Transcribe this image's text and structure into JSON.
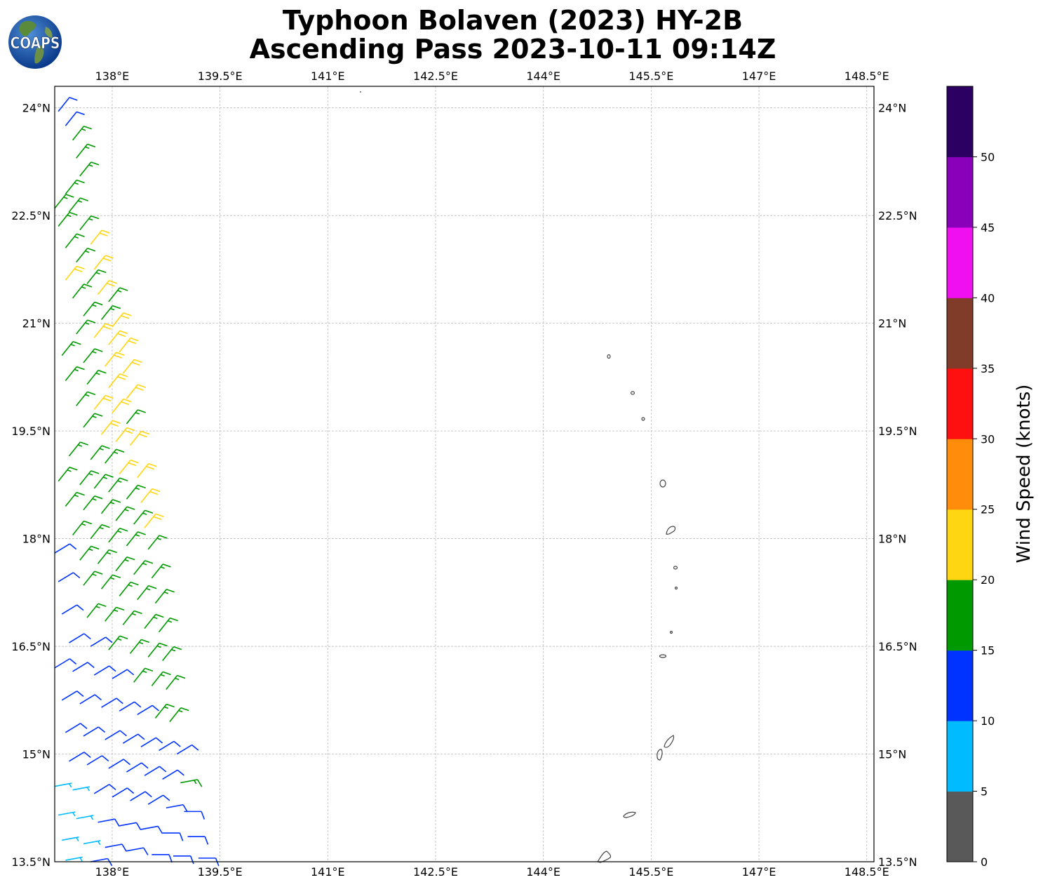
{
  "title": {
    "line1": "Typhoon Bolaven (2023) HY-2B",
    "line2": "Ascending Pass 2023-10-11 09:14Z"
  },
  "logo": {
    "text": "COAPS"
  },
  "map": {
    "lon_ticks": [
      "138°E",
      "139.5°E",
      "141°E",
      "142.5°E",
      "144°E",
      "145.5°E",
      "147°E",
      "148.5°E"
    ],
    "lat_ticks": [
      "24°N",
      "22.5°N",
      "21°N",
      "19.5°N",
      "18°N",
      "16.5°N",
      "15°N",
      "13.5°N"
    ],
    "lon_range": [
      137.2,
      148.6
    ],
    "lat_range": [
      13.5,
      24.3
    ],
    "gridlines": true,
    "coastline_color": "#444444",
    "gridline_color": "#bbbbbb"
  },
  "colorbar": {
    "label": "Wind Speed (knots)",
    "ticks": [
      "0",
      "5",
      "10",
      "15",
      "20",
      "25",
      "30",
      "35",
      "40",
      "45",
      "50"
    ],
    "colors": [
      "#595959",
      "#00bbff",
      "#0033ff",
      "#009900",
      "#ffd611",
      "#ff8c0a",
      "#ff1010",
      "#803c28",
      "#f00ff0",
      "#8a00ba",
      "#2c0063"
    ]
  },
  "wind_swath": {
    "description_colors": {
      "light_blue": "#00bbff",
      "blue": "#0033ff",
      "green": "#009900",
      "yellow": "#ffd611"
    },
    "barbs": [
      [
        23.95,
        137.25,
        12,
        40
      ],
      [
        23.75,
        137.35,
        12,
        40
      ],
      [
        23.55,
        137.45,
        17,
        40
      ],
      [
        23.3,
        137.5,
        17,
        40
      ],
      [
        23.05,
        137.55,
        17,
        40
      ],
      [
        22.85,
        137.1,
        17,
        40
      ],
      [
        22.8,
        137.35,
        17,
        40
      ],
      [
        22.6,
        137.2,
        17,
        40
      ],
      [
        22.55,
        137.4,
        17,
        40
      ],
      [
        22.35,
        137.25,
        17,
        40
      ],
      [
        22.3,
        137.55,
        17,
        40
      ],
      [
        22.1,
        137.7,
        22,
        40
      ],
      [
        22.05,
        137.35,
        17,
        40
      ],
      [
        21.85,
        137.5,
        17,
        40
      ],
      [
        21.8,
        137.1,
        17,
        40
      ],
      [
        21.75,
        137.75,
        22,
        40
      ],
      [
        21.6,
        137.35,
        22,
        40
      ],
      [
        21.55,
        137.65,
        17,
        40
      ],
      [
        21.4,
        137.8,
        22,
        40
      ],
      [
        21.35,
        137.45,
        17,
        40
      ],
      [
        21.3,
        137.95,
        17,
        40
      ],
      [
        21.1,
        137.6,
        17,
        40
      ],
      [
        21.05,
        137.85,
        17,
        40
      ],
      [
        20.95,
        138.0,
        22,
        40
      ],
      [
        20.85,
        137.5,
        17,
        40
      ],
      [
        20.8,
        137.75,
        22,
        40
      ],
      [
        20.7,
        137.95,
        22,
        40
      ],
      [
        20.6,
        138.1,
        22,
        40
      ],
      [
        20.55,
        137.3,
        17,
        40
      ],
      [
        20.45,
        137.6,
        17,
        40
      ],
      [
        20.4,
        137.9,
        22,
        40
      ],
      [
        20.3,
        138.15,
        22,
        40
      ],
      [
        20.2,
        137.35,
        17,
        40
      ],
      [
        20.15,
        137.65,
        17,
        40
      ],
      [
        20.1,
        137.95,
        22,
        40
      ],
      [
        19.95,
        138.2,
        22,
        40
      ],
      [
        19.85,
        137.5,
        17,
        40
      ],
      [
        19.8,
        137.75,
        22,
        40
      ],
      [
        19.75,
        138.0,
        22,
        40
      ],
      [
        19.6,
        138.2,
        17,
        40
      ],
      [
        19.55,
        137.6,
        17,
        40
      ],
      [
        19.45,
        137.85,
        22,
        40
      ],
      [
        19.35,
        138.05,
        22,
        40
      ],
      [
        19.3,
        138.25,
        22,
        40
      ],
      [
        19.2,
        137.15,
        17,
        40
      ],
      [
        19.15,
        137.4,
        17,
        40
      ],
      [
        19.1,
        137.7,
        17,
        40
      ],
      [
        19.05,
        137.9,
        17,
        40
      ],
      [
        18.9,
        138.1,
        22,
        40
      ],
      [
        18.85,
        138.35,
        22,
        40
      ],
      [
        18.8,
        137.25,
        17,
        40
      ],
      [
        18.75,
        137.55,
        17,
        40
      ],
      [
        18.7,
        137.75,
        17,
        40
      ],
      [
        18.65,
        137.95,
        17,
        40
      ],
      [
        18.55,
        138.2,
        17,
        40
      ],
      [
        18.5,
        138.4,
        22,
        40
      ],
      [
        18.45,
        137.35,
        17,
        40
      ],
      [
        18.4,
        137.6,
        17,
        40
      ],
      [
        18.35,
        137.85,
        17,
        40
      ],
      [
        18.25,
        138.05,
        17,
        40
      ],
      [
        18.2,
        138.3,
        17,
        40
      ],
      [
        18.15,
        138.45,
        22,
        40
      ],
      [
        18.1,
        137.1,
        17,
        40
      ],
      [
        18.05,
        137.45,
        17,
        40
      ],
      [
        18.0,
        137.7,
        17,
        40
      ],
      [
        17.95,
        137.95,
        17,
        40
      ],
      [
        17.9,
        138.2,
        17,
        40
      ],
      [
        17.85,
        138.5,
        17,
        40
      ],
      [
        17.8,
        137.2,
        12,
        60
      ],
      [
        17.7,
        137.55,
        17,
        40
      ],
      [
        17.65,
        137.8,
        17,
        40
      ],
      [
        17.55,
        138.05,
        17,
        40
      ],
      [
        17.5,
        138.3,
        17,
        40
      ],
      [
        17.45,
        138.55,
        17,
        40
      ],
      [
        17.4,
        137.25,
        12,
        60
      ],
      [
        17.35,
        137.6,
        17,
        40
      ],
      [
        17.3,
        137.85,
        17,
        40
      ],
      [
        17.2,
        138.1,
        17,
        40
      ],
      [
        17.15,
        138.35,
        17,
        40
      ],
      [
        17.1,
        138.6,
        17,
        40
      ],
      [
        17.0,
        137.05,
        12,
        60
      ],
      [
        16.95,
        137.3,
        12,
        60
      ],
      [
        16.9,
        137.65,
        17,
        40
      ],
      [
        16.85,
        137.9,
        17,
        40
      ],
      [
        16.8,
        138.15,
        17,
        40
      ],
      [
        16.75,
        138.45,
        17,
        40
      ],
      [
        16.7,
        138.65,
        17,
        40
      ],
      [
        16.6,
        137.15,
        12,
        60
      ],
      [
        16.55,
        137.4,
        12,
        60
      ],
      [
        16.5,
        137.7,
        12,
        60
      ],
      [
        16.45,
        137.95,
        17,
        40
      ],
      [
        16.4,
        138.25,
        17,
        40
      ],
      [
        16.35,
        138.5,
        17,
        40
      ],
      [
        16.3,
        138.7,
        17,
        40
      ],
      [
        16.2,
        137.2,
        12,
        60
      ],
      [
        16.15,
        137.45,
        12,
        60
      ],
      [
        16.1,
        137.75,
        12,
        60
      ],
      [
        16.05,
        138.0,
        12,
        60
      ],
      [
        16.0,
        138.3,
        17,
        40
      ],
      [
        15.95,
        138.55,
        17,
        40
      ],
      [
        15.9,
        138.75,
        17,
        40
      ],
      [
        15.8,
        137.05,
        12,
        60
      ],
      [
        15.75,
        137.3,
        12,
        60
      ],
      [
        15.7,
        137.55,
        12,
        60
      ],
      [
        15.65,
        137.85,
        12,
        60
      ],
      [
        15.6,
        138.1,
        12,
        60
      ],
      [
        15.55,
        138.35,
        12,
        60
      ],
      [
        15.5,
        138.6,
        17,
        40
      ],
      [
        15.45,
        138.8,
        17,
        40
      ],
      [
        15.35,
        137.1,
        12,
        60
      ],
      [
        15.3,
        137.35,
        12,
        60
      ],
      [
        15.25,
        137.6,
        12,
        60
      ],
      [
        15.2,
        137.9,
        12,
        60
      ],
      [
        15.15,
        138.15,
        12,
        60
      ],
      [
        15.1,
        138.4,
        12,
        60
      ],
      [
        15.05,
        138.65,
        12,
        60
      ],
      [
        15.0,
        138.9,
        12,
        60
      ],
      [
        14.95,
        137.15,
        7,
        80
      ],
      [
        14.9,
        137.4,
        12,
        60
      ],
      [
        14.85,
        137.65,
        12,
        60
      ],
      [
        14.8,
        137.95,
        12,
        60
      ],
      [
        14.75,
        138.2,
        12,
        60
      ],
      [
        14.7,
        138.45,
        12,
        60
      ],
      [
        14.65,
        138.7,
        12,
        60
      ],
      [
        14.6,
        138.95,
        17,
        80
      ],
      [
        14.55,
        137.2,
        7,
        80
      ],
      [
        14.5,
        137.45,
        7,
        80
      ],
      [
        14.45,
        137.75,
        12,
        60
      ],
      [
        14.4,
        138.0,
        12,
        60
      ],
      [
        14.35,
        138.25,
        12,
        60
      ],
      [
        14.3,
        138.5,
        12,
        60
      ],
      [
        14.25,
        138.75,
        12,
        80
      ],
      [
        14.2,
        139.0,
        12,
        90
      ],
      [
        14.15,
        137.25,
        7,
        80
      ],
      [
        14.1,
        137.5,
        7,
        80
      ],
      [
        14.05,
        137.8,
        12,
        80
      ],
      [
        14.0,
        138.1,
        12,
        80
      ],
      [
        13.95,
        138.4,
        12,
        80
      ],
      [
        13.9,
        138.7,
        12,
        90
      ],
      [
        13.85,
        139.05,
        12,
        90
      ],
      [
        13.8,
        137.3,
        7,
        80
      ],
      [
        13.75,
        137.6,
        7,
        80
      ],
      [
        13.7,
        137.9,
        12,
        80
      ],
      [
        13.65,
        138.2,
        12,
        80
      ],
      [
        13.6,
        138.55,
        12,
        90
      ],
      [
        13.58,
        138.85,
        12,
        90
      ],
      [
        13.55,
        139.2,
        12,
        90
      ],
      [
        13.52,
        137.35,
        7,
        80
      ],
      [
        13.5,
        137.7,
        12,
        80
      ]
    ]
  }
}
